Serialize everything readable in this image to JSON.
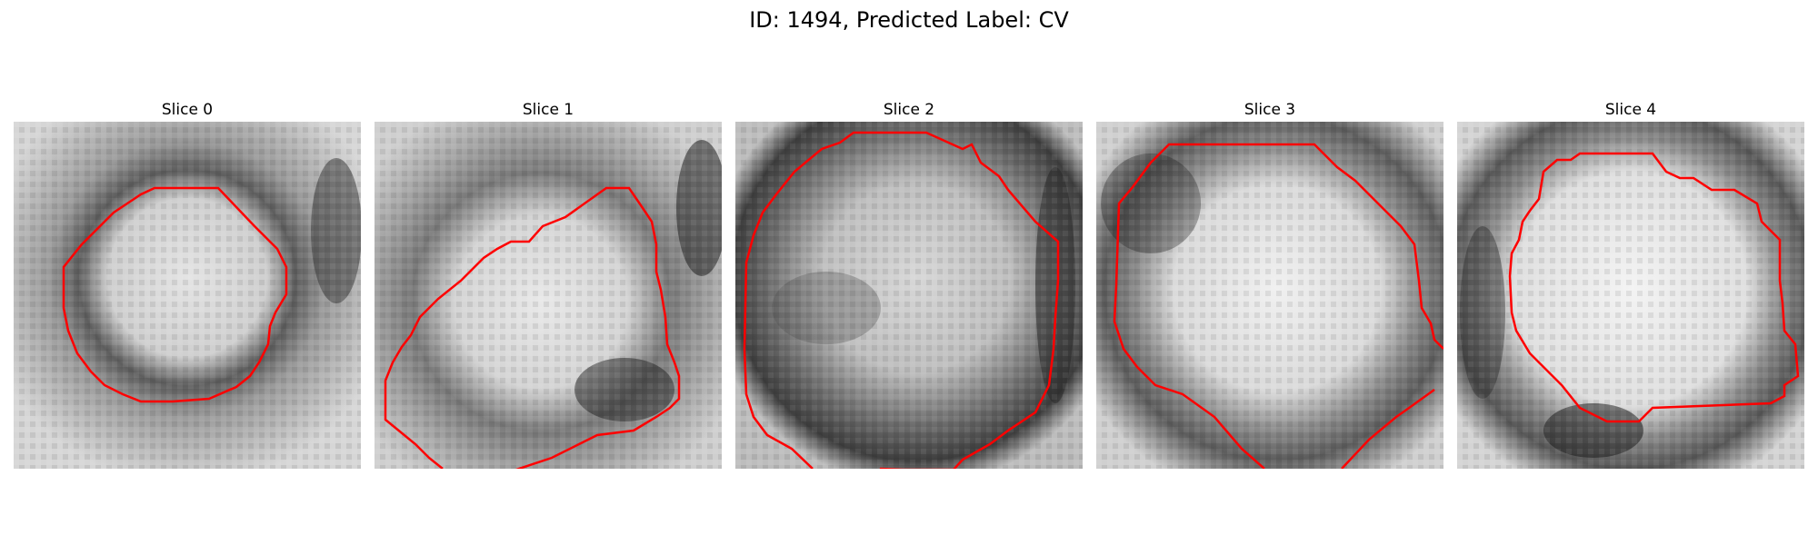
{
  "figure": {
    "title": "ID: 1494, Predicted Label: CV"
  },
  "slices": [
    {
      "label": "Slice 0"
    },
    {
      "label": "Slice 1"
    },
    {
      "label": "Slice 2"
    },
    {
      "label": "Slice 3"
    },
    {
      "label": "Slice 4"
    }
  ],
  "colors": {
    "contour": "#ff0000",
    "colormap": "grayscale"
  }
}
